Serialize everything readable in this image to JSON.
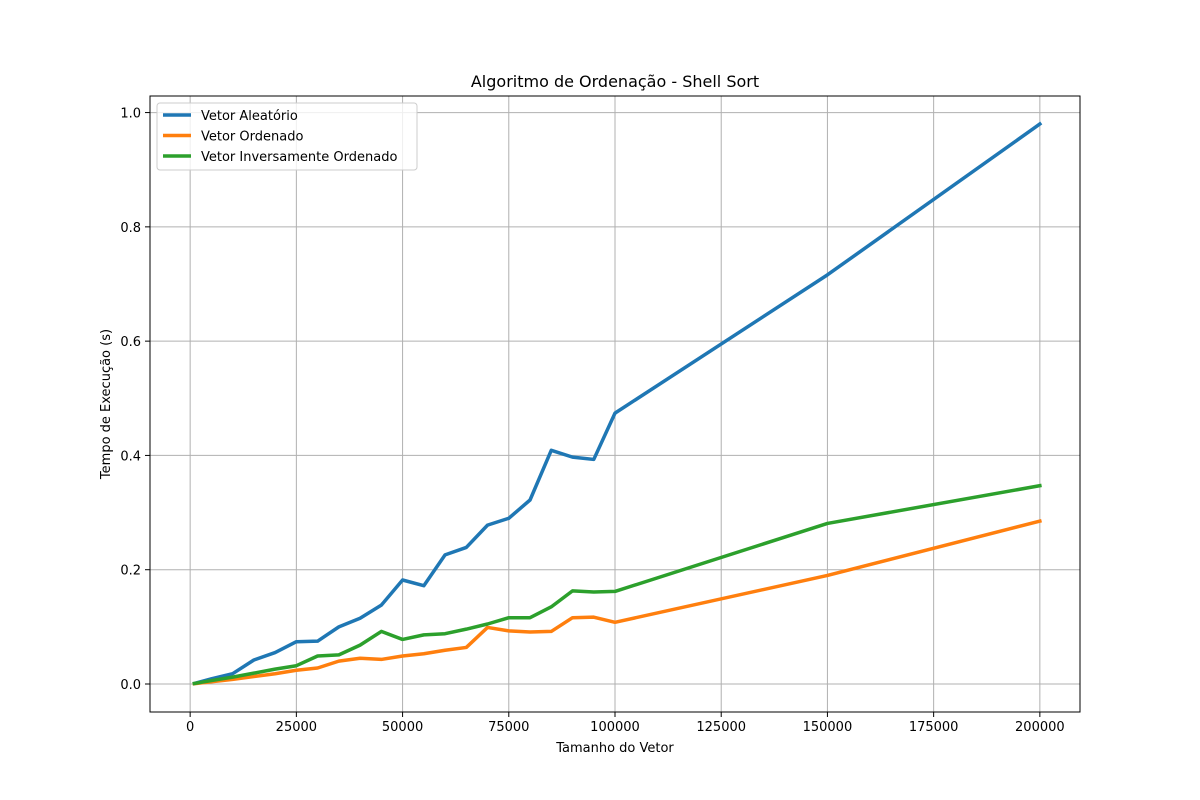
{
  "chart_data": {
    "type": "line",
    "title": "Algoritmo de Ordenação - Shell Sort",
    "xlabel": "Tamanho do Vetor",
    "ylabel": "Tempo de Execução (s)",
    "xlim": [
      -9450,
      209450
    ],
    "ylim": [
      -0.049,
      1.029
    ],
    "xticks": [
      0,
      25000,
      50000,
      75000,
      100000,
      125000,
      150000,
      175000,
      200000
    ],
    "xtick_labels": [
      "0",
      "25000",
      "50000",
      "75000",
      "100000",
      "125000",
      "150000",
      "175000",
      "200000"
    ],
    "yticks": [
      0.0,
      0.2,
      0.4,
      0.6,
      0.8,
      1.0
    ],
    "ytick_labels": [
      "0.0",
      "0.2",
      "0.4",
      "0.6",
      "0.8",
      "1.0"
    ],
    "grid": true,
    "legend_position": "top-left",
    "x": [
      1000,
      5000,
      10000,
      15000,
      20000,
      25000,
      30000,
      35000,
      40000,
      45000,
      50000,
      55000,
      60000,
      65000,
      70000,
      75000,
      80000,
      85000,
      90000,
      95000,
      100000,
      150000,
      200000
    ],
    "series": [
      {
        "name": "Vetor Aleatório",
        "color": "#1f77b4",
        "values": [
          0.001,
          0.009,
          0.018,
          0.042,
          0.055,
          0.074,
          0.075,
          0.1,
          0.115,
          0.138,
          0.182,
          0.172,
          0.226,
          0.239,
          0.278,
          0.29,
          0.322,
          0.409,
          0.397,
          0.393,
          0.474,
          0.716,
          0.98
        ]
      },
      {
        "name": "Vetor Ordenado",
        "color": "#ff7f0e",
        "values": [
          0.0005,
          0.004,
          0.008,
          0.013,
          0.018,
          0.024,
          0.028,
          0.04,
          0.045,
          0.043,
          0.049,
          0.053,
          0.059,
          0.064,
          0.099,
          0.093,
          0.091,
          0.092,
          0.116,
          0.117,
          0.108,
          0.19,
          0.285
        ]
      },
      {
        "name": "Vetor Inversamente Ordenado",
        "color": "#2ca02c",
        "values": [
          0.001,
          0.006,
          0.012,
          0.019,
          0.026,
          0.032,
          0.049,
          0.051,
          0.068,
          0.092,
          0.078,
          0.086,
          0.088,
          0.096,
          0.105,
          0.116,
          0.116,
          0.135,
          0.163,
          0.161,
          0.162,
          0.281,
          0.347
        ]
      }
    ]
  }
}
